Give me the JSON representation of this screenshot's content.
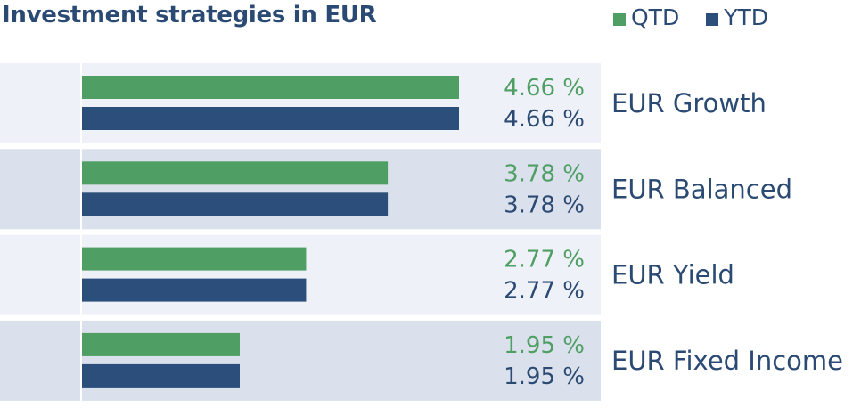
{
  "chart_data": {
    "type": "bar",
    "orientation": "horizontal",
    "title": "Investment strategies in EUR",
    "categories": [
      "EUR Growth",
      "EUR Balanced",
      "EUR Yield",
      "EUR Fixed Income"
    ],
    "series": [
      {
        "name": "QTD",
        "values": [
          4.66,
          3.78,
          2.77,
          1.95
        ],
        "labels": [
          "4.66 %",
          "3.78 %",
          "2.77 %",
          "1.95 %"
        ],
        "color": "#4f9e63"
      },
      {
        "name": "YTD",
        "values": [
          4.66,
          3.78,
          2.77,
          1.95
        ],
        "labels": [
          "4.66 %",
          "3.78 %",
          "2.77 %",
          "1.95 %"
        ],
        "color": "#2b4f7a"
      }
    ],
    "xlim": [
      0,
      4.66
    ],
    "unit": "%",
    "legend_position": "top-right",
    "grid": false
  },
  "colors": {
    "title": "#2b4a73",
    "qtd_label": "#4f9e63",
    "ytd_label": "#2b4a73",
    "row_light": "#eef2f8",
    "row_dark": "#dae1ec"
  }
}
